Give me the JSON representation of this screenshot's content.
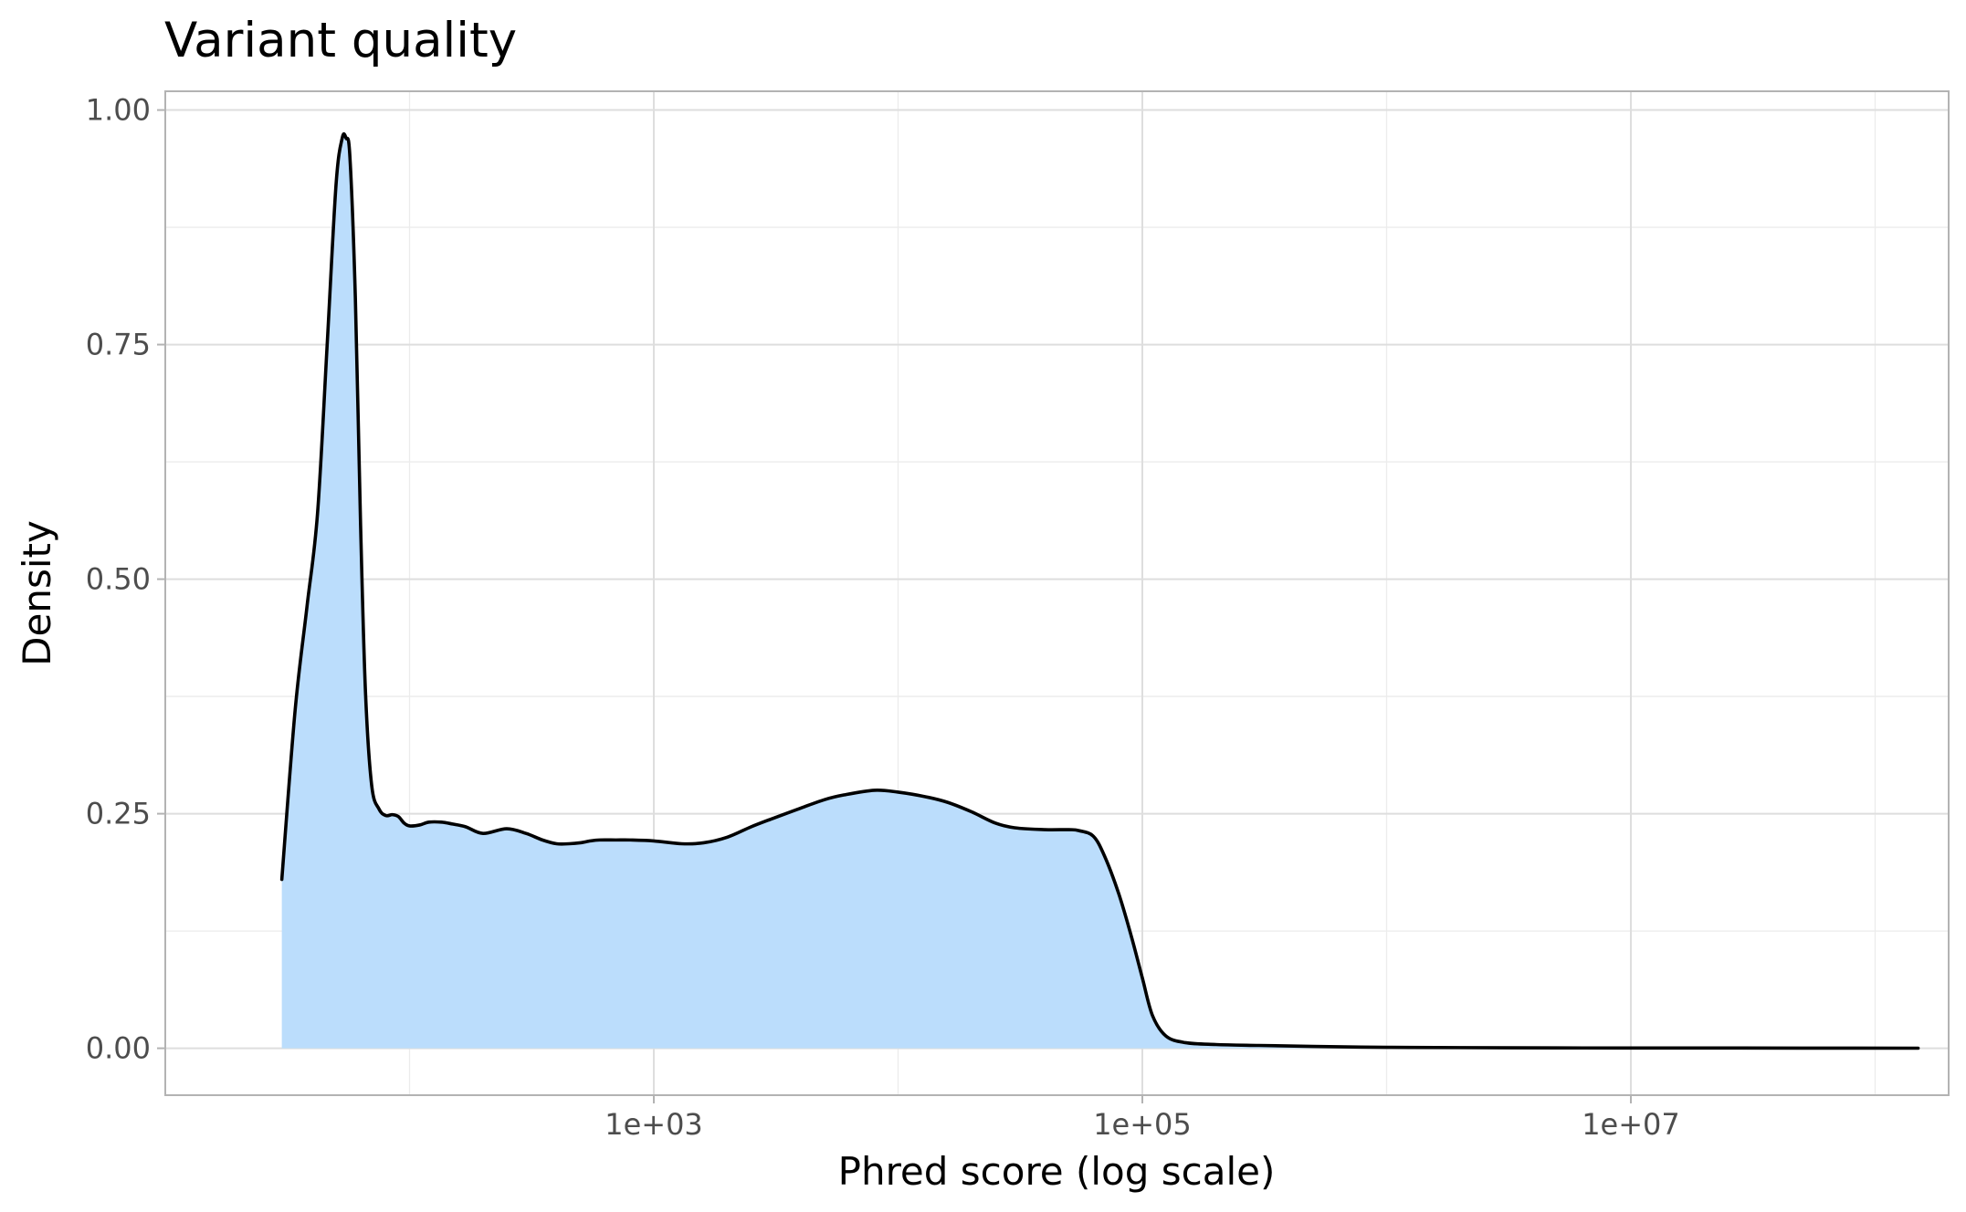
{
  "chart_data": {
    "type": "area",
    "title": "Variant quality",
    "xlabel": "Phred score (log scale)",
    "ylabel": "Density",
    "x_scale": "log10",
    "xlim": [
      10,
      200000000
    ],
    "ylim": [
      -0.05,
      1.02
    ],
    "x_ticks": [
      {
        "value": 1000,
        "label": "1e+03"
      },
      {
        "value": 100000,
        "label": "1e+05"
      },
      {
        "value": 10000000,
        "label": "1e+07"
      }
    ],
    "x_minor_ticks": [
      100,
      10000,
      1000000,
      100000000
    ],
    "y_ticks": [
      {
        "value": 0,
        "label": "0.00"
      },
      {
        "value": 0.25,
        "label": "0.25"
      },
      {
        "value": 0.5,
        "label": "0.50"
      },
      {
        "value": 0.75,
        "label": "0.75"
      },
      {
        "value": 1,
        "label": "1.00"
      }
    ],
    "y_minor_ticks": [
      0.125,
      0.375,
      0.625,
      0.875
    ],
    "grid": true,
    "legend": "none",
    "fill_color": "#bbddfc",
    "line_color": "#000000",
    "series": [
      {
        "x": [
          30,
          34,
          38,
          42,
          46,
          50,
          53,
          55,
          57,
          60,
          63,
          66,
          70,
          75,
          80,
          85,
          90,
          95,
          100,
          110,
          120,
          135,
          150,
          170,
          200,
          250,
          300,
          350,
          400,
          450,
          500,
          550,
          600,
          700,
          800,
          1000,
          1300,
          1600,
          2000,
          2500,
          3000,
          4000,
          5000,
          6000,
          8000,
          10000,
          13000,
          16000,
          20000,
          25000,
          30000,
          40000,
          50000,
          55000,
          63000,
          70000,
          80000,
          90000,
          100000,
          110000,
          125000,
          150000,
          200000,
          300000,
          500000,
          1000000,
          2000000,
          5000000,
          10000000,
          50000000,
          150000000
        ],
        "y": [
          0.18,
          0.36,
          0.47,
          0.57,
          0.75,
          0.92,
          0.97,
          0.97,
          0.95,
          0.8,
          0.56,
          0.38,
          0.28,
          0.255,
          0.248,
          0.249,
          0.247,
          0.24,
          0.237,
          0.238,
          0.241,
          0.241,
          0.239,
          0.236,
          0.229,
          0.234,
          0.229,
          0.222,
          0.218,
          0.218,
          0.219,
          0.221,
          0.222,
          0.222,
          0.222,
          0.221,
          0.218,
          0.219,
          0.225,
          0.236,
          0.244,
          0.256,
          0.265,
          0.27,
          0.275,
          0.273,
          0.268,
          0.262,
          0.252,
          0.24,
          0.235,
          0.233,
          0.233,
          0.232,
          0.226,
          0.205,
          0.165,
          0.12,
          0.075,
          0.035,
          0.013,
          0.006,
          0.004,
          0.003,
          0.002,
          0.001,
          0.0007,
          0.0004,
          0.0003,
          0.0002,
          0.0001
        ]
      }
    ]
  }
}
